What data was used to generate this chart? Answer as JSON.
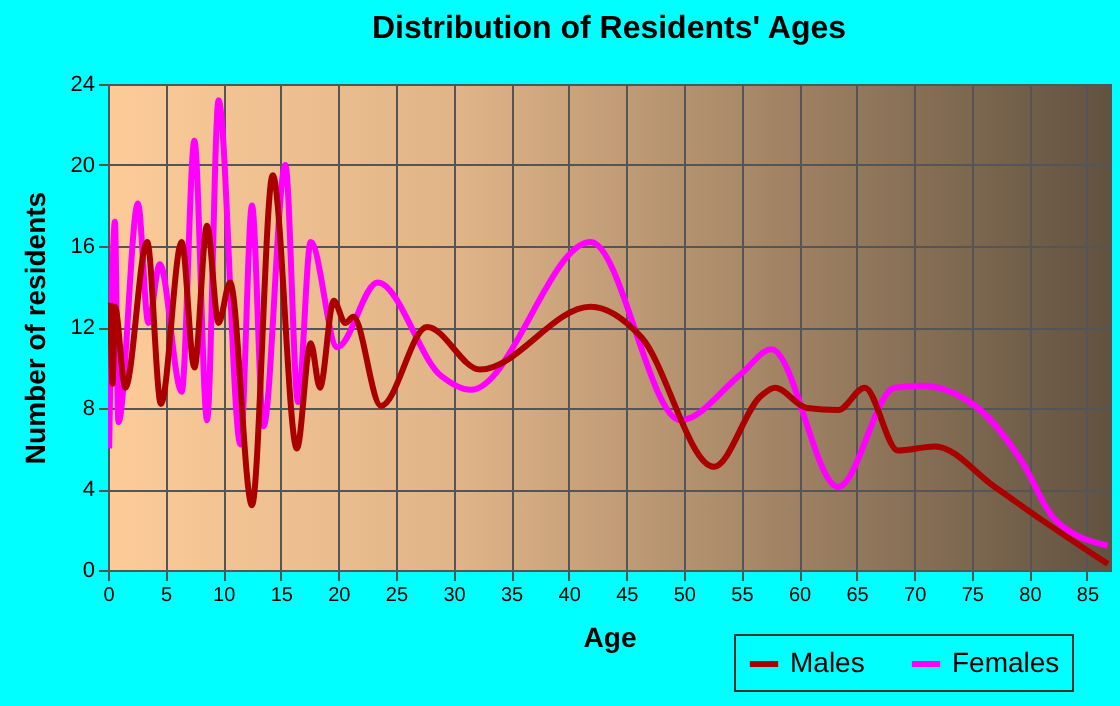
{
  "chart_data": {
    "type": "line",
    "title": "Distribution of Residents' Ages",
    "xlabel": "Age",
    "ylabel": "Number of residents",
    "xlim": [
      0,
      87
    ],
    "xticks": [
      0,
      5,
      10,
      15,
      20,
      25,
      30,
      35,
      40,
      45,
      50,
      55,
      60,
      65,
      70,
      75,
      80,
      85
    ],
    "ylim": [
      0,
      24
    ],
    "yticks": [
      0,
      4,
      8,
      12,
      16,
      20,
      24
    ],
    "grid": true,
    "legend": "bottom right",
    "marker": "none",
    "line_style": "solid",
    "series": [
      {
        "name": "Males",
        "color": "#aa0000",
        "x": [
          0.2,
          0.4,
          0.6,
          1.5,
          3.4,
          4.6,
          6.4,
          7.5,
          8.6,
          9.6,
          10.6,
          12.5,
          14.3,
          16.4,
          17.6,
          18.4,
          19.6,
          20.6,
          21.3,
          23.7,
          27.7,
          32.3,
          41.9,
          46.3,
          52.6,
          56.7,
          57.9,
          60.7,
          63.4,
          65.7,
          68.6,
          71.8,
          77,
          81,
          86.8
        ],
        "values": [
          13.2,
          9.2,
          13,
          9,
          16.2,
          8.2,
          16.2,
          10,
          17,
          12.2,
          14.2,
          3.2,
          19.5,
          6,
          11.2,
          9,
          13.3,
          12.2,
          12.5,
          8.1,
          12,
          9.9,
          13,
          11.5,
          5.1,
          8.6,
          9,
          8,
          7.9,
          9,
          5.9,
          6.1,
          4.1,
          2.5,
          0.3
        ]
      },
      {
        "name": "Females",
        "color": "#ff00ff",
        "x": [
          0.1,
          0.6,
          0.9,
          2.6,
          3.5,
          4.5,
          6.4,
          7.5,
          8.6,
          9.6,
          11.5,
          12.5,
          13.5,
          15.4,
          16.5,
          17.6,
          19.9,
          23.4,
          28.9,
          31.5,
          41.9,
          49.7,
          55,
          57.6,
          63.4,
          68.3,
          70.6,
          75.3,
          79.3,
          82.2,
          86.8
        ],
        "values": [
          6,
          17.2,
          7.3,
          18.1,
          12.2,
          15.1,
          8.8,
          21.2,
          7.4,
          23.2,
          6.2,
          18,
          7.1,
          20,
          8.3,
          16.2,
          11,
          14.2,
          9.6,
          8.9,
          16.2,
          7.4,
          9.7,
          10.9,
          4.1,
          9,
          9.1,
          8.1,
          5.4,
          2.5,
          1.2
        ]
      }
    ]
  }
}
